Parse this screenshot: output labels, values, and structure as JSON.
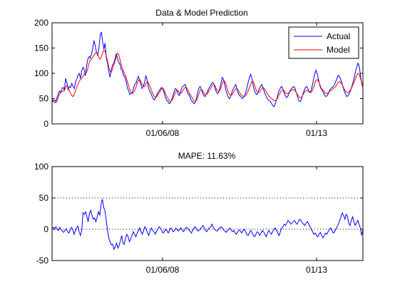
{
  "chart_data": [
    {
      "type": "line",
      "title": "Data & Model Prediction",
      "xlabel": "",
      "ylabel": "",
      "ylim": [
        0,
        200
      ],
      "y_ticks": [
        0,
        50,
        100,
        150,
        200
      ],
      "x_tick_labels": [
        "01/06/08",
        "01/13"
      ],
      "legend": {
        "placement": "top-right"
      },
      "series": [
        {
          "name": "Actual",
          "color": "#0000ff",
          "values": [
            49,
            45,
            47,
            44,
            52,
            58,
            65,
            62,
            70,
            72,
            67,
            90,
            82,
            68,
            74,
            72,
            80,
            74,
            70,
            82,
            88,
            96,
            100,
            90,
            104,
            112,
            108,
            95,
            115,
            128,
            133,
            130,
            138,
            150,
            165,
            155,
            142,
            135,
            150,
            175,
            182,
            162,
            148,
            160,
            130,
            120,
            104,
            92,
            108,
            116,
            120,
            128,
            138,
            130,
            122,
            118,
            108,
            105,
            95,
            93,
            84,
            72,
            66,
            58,
            60,
            62,
            70,
            78,
            80,
            88,
            94,
            85,
            78,
            70,
            74,
            82,
            95,
            88,
            74,
            65,
            62,
            55,
            50,
            47,
            52,
            58,
            63,
            66,
            70,
            72,
            68,
            60,
            52,
            46,
            44,
            40,
            42,
            48,
            56,
            64,
            70,
            68,
            60,
            56,
            62,
            70,
            74,
            76,
            78,
            68,
            60,
            58,
            52,
            46,
            44,
            40,
            42,
            50,
            62,
            70,
            74,
            68,
            62,
            56,
            54,
            58,
            64,
            70,
            74,
            78,
            82,
            80,
            72,
            64,
            60,
            62,
            70,
            82,
            92,
            88,
            78,
            66,
            58,
            52,
            50,
            56,
            64,
            70,
            74,
            78,
            68,
            60,
            56,
            54,
            50,
            52,
            56,
            62,
            72,
            82,
            92,
            98,
            90,
            76,
            66,
            60,
            58,
            62,
            70,
            74,
            78,
            72,
            64,
            58,
            52,
            48,
            46,
            44,
            40,
            36,
            34,
            40,
            48,
            58,
            66,
            70,
            74,
            70,
            62,
            56,
            52,
            54,
            60,
            66,
            70,
            72,
            74,
            70,
            62,
            54,
            46,
            44,
            48,
            56,
            64,
            70,
            74,
            72,
            66,
            62,
            66,
            76,
            88,
            100,
            106,
            98,
            88,
            76,
            70,
            66,
            62,
            56,
            54,
            56,
            60,
            66,
            70,
            72,
            74,
            78,
            84,
            90,
            96,
            94,
            88,
            80,
            72,
            64,
            58,
            54,
            56,
            60,
            66,
            74,
            82,
            92,
            104,
            112,
            120,
            114,
            96,
            80,
            72
          ]
        },
        {
          "name": "Model",
          "color": "#ff0000",
          "values": [
            45,
            44,
            42,
            42,
            45,
            52,
            60,
            62,
            64,
            65,
            66,
            72,
            76,
            72,
            66,
            60,
            56,
            54,
            58,
            66,
            72,
            78,
            84,
            88,
            90,
            94,
            98,
            100,
            102,
            110,
            120,
            126,
            128,
            132,
            136,
            140,
            142,
            138,
            130,
            128,
            134,
            140,
            146,
            144,
            134,
            124,
            112,
            104,
            102,
            108,
            116,
            124,
            132,
            140,
            138,
            128,
            118,
            110,
            104,
            98,
            92,
            84,
            76,
            68,
            62,
            60,
            62,
            66,
            72,
            80,
            86,
            88,
            84,
            78,
            74,
            74,
            78,
            84,
            82,
            76,
            70,
            64,
            58,
            54,
            52,
            54,
            58,
            62,
            66,
            70,
            70,
            66,
            60,
            54,
            50,
            46,
            44,
            46,
            50,
            56,
            62,
            66,
            66,
            62,
            60,
            62,
            66,
            70,
            72,
            72,
            68,
            62,
            58,
            54,
            50,
            46,
            44,
            46,
            52,
            60,
            66,
            68,
            66,
            62,
            58,
            58,
            60,
            64,
            68,
            72,
            76,
            78,
            76,
            70,
            66,
            64,
            66,
            72,
            80,
            86,
            84,
            78,
            70,
            62,
            58,
            56,
            58,
            62,
            66,
            70,
            70,
            66,
            62,
            58,
            56,
            54,
            54,
            56,
            60,
            66,
            72,
            78,
            84,
            84,
            78,
            70,
            64,
            62,
            62,
            66,
            70,
            72,
            70,
            66,
            62,
            58,
            54,
            52,
            50,
            48,
            46,
            46,
            48,
            52,
            58,
            62,
            66,
            68,
            66,
            62,
            60,
            60,
            62,
            64,
            66,
            68,
            68,
            66,
            62,
            58,
            54,
            52,
            52,
            56,
            60,
            64,
            66,
            66,
            64,
            62,
            62,
            66,
            72,
            80,
            86,
            88,
            84,
            78,
            72,
            68,
            66,
            62,
            60,
            60,
            62,
            64,
            66,
            68,
            70,
            72,
            74,
            78,
            82,
            84,
            82,
            78,
            74,
            68,
            64,
            62,
            62,
            64,
            68,
            72,
            78,
            84,
            90,
            96,
            100,
            98,
            90,
            82,
            76
          ]
        }
      ]
    },
    {
      "type": "line",
      "title": "MAPE: 11.63%",
      "xlabel": "",
      "ylabel": "",
      "ylim": [
        -50,
        100
      ],
      "y_ticks": [
        -50,
        0,
        50,
        100
      ],
      "x_tick_labels": [
        "01/06/08",
        "01/13"
      ],
      "reference_lines": [
        0,
        50
      ],
      "series": [
        {
          "color": "#0000ff",
          "values": [
            2,
            3,
            1,
            4,
            0,
            -2,
            3,
            -1,
            -3,
            -5,
            -2,
            1,
            -4,
            -6,
            -2,
            3,
            0,
            -8,
            -3,
            2,
            5,
            -4,
            -10,
            -2,
            26,
            24,
            28,
            20,
            12,
            26,
            30,
            22,
            16,
            18,
            12,
            20,
            28,
            22,
            40,
            48,
            35,
            30,
            14,
            -2,
            -14,
            -20,
            -25,
            -24,
            -32,
            -28,
            -22,
            -30,
            -26,
            -18,
            -10,
            -22,
            -24,
            -14,
            -8,
            -12,
            -20,
            -15,
            -10,
            -4,
            -8,
            -12,
            -6,
            -2,
            2,
            -4,
            -8,
            -2,
            4,
            0,
            -6,
            -10,
            -3,
            2,
            -2,
            -4,
            -8,
            -3,
            0,
            4,
            2,
            -2,
            -6,
            -4,
            0,
            -2,
            -6,
            -2,
            2,
            0,
            -4,
            -2,
            2,
            -1,
            -3,
            0,
            2,
            -2,
            -4,
            0,
            3,
            2,
            -1,
            -3,
            -6,
            -2,
            2,
            4,
            0,
            -3,
            -2,
            1,
            3,
            6,
            2,
            -2,
            -4,
            0,
            2,
            4,
            8,
            3,
            0,
            -2,
            -3,
            0,
            2,
            4,
            2,
            -1,
            -3,
            -5,
            -2,
            0,
            2,
            -2,
            -4,
            -2,
            -6,
            -8,
            -4,
            -1,
            -3,
            -6,
            -2,
            0,
            -4,
            -8,
            -10,
            -6,
            -2,
            -5,
            -10,
            -12,
            -8,
            -4,
            -6,
            -10,
            -6,
            -2,
            -4,
            -8,
            -12,
            -6,
            -2,
            -5,
            -8,
            -4,
            0,
            2,
            -2,
            -6,
            -10,
            -4,
            2,
            4,
            8,
            6,
            10,
            14,
            12,
            8,
            10,
            12,
            14,
            10,
            8,
            12,
            16,
            14,
            10,
            8,
            6,
            10,
            12,
            8,
            4,
            0,
            -4,
            -8,
            -6,
            -10,
            -12,
            -8,
            -5,
            -10,
            -14,
            -10,
            -6,
            -8,
            -4,
            0,
            2,
            -2,
            -6,
            -4,
            0,
            4,
            8,
            14,
            20,
            26,
            22,
            16,
            24,
            20,
            10,
            6,
            14,
            20,
            12,
            6,
            10,
            14,
            8,
            2,
            -10,
            0
          ]
        }
      ]
    }
  ]
}
